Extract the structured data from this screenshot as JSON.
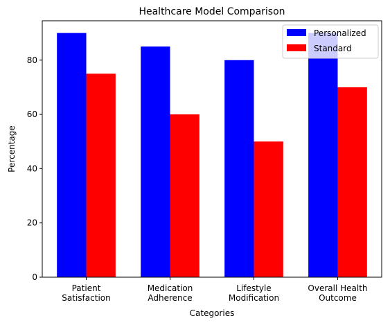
{
  "chart_data": {
    "type": "bar",
    "title": "Healthcare Model Comparison",
    "xlabel": "Categories",
    "ylabel": "Percentage",
    "categories": [
      [
        "Patient",
        "Satisfaction"
      ],
      [
        "Medication",
        "Adherence"
      ],
      [
        "Lifestyle",
        "Modification"
      ],
      [
        "Overall Health",
        "Outcome"
      ]
    ],
    "series": [
      {
        "name": "Personalized",
        "color": "#0000ff",
        "values": [
          90,
          85,
          80,
          90
        ]
      },
      {
        "name": "Standard",
        "color": "#ff0000",
        "values": [
          75,
          60,
          50,
          70
        ]
      }
    ],
    "ylim": [
      0,
      94.5
    ],
    "yticks": [
      0,
      20,
      40,
      60,
      80
    ],
    "grid": false,
    "legend_position": "top-right"
  }
}
